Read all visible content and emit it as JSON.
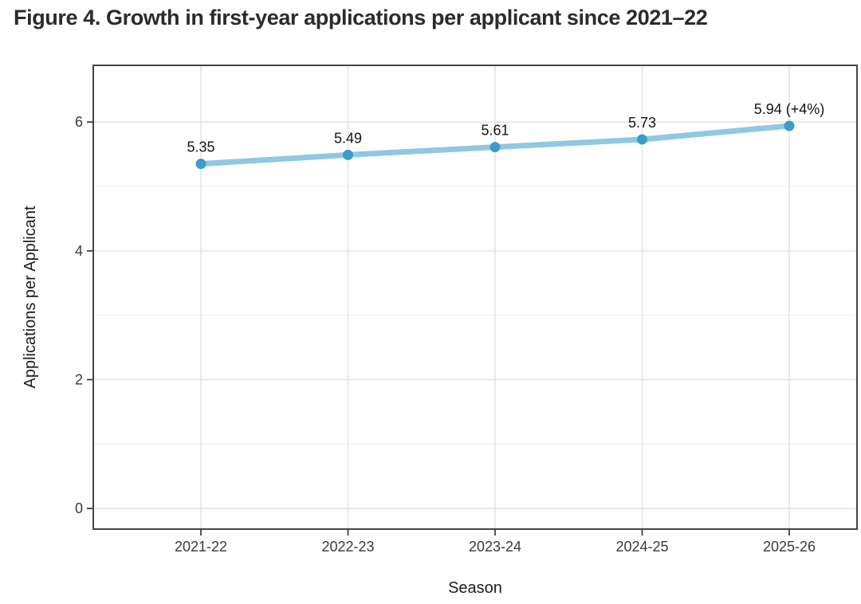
{
  "figure": {
    "title": "Figure 4. Growth in first-year applications per applicant since 2021–22"
  },
  "chart_data": {
    "type": "line",
    "title": "Figure 4. Growth in first-year applications per applicant since 2021–22",
    "categories": [
      "2021-22",
      "2022-23",
      "2023-24",
      "2024-25",
      "2025-26"
    ],
    "values": [
      5.35,
      5.49,
      5.61,
      5.73,
      5.94
    ],
    "point_labels": [
      "5.35",
      "5.49",
      "5.61",
      "5.73",
      "5.94 (+4%)"
    ],
    "xlabel": "Season",
    "ylabel": "Applications per Applicant",
    "yticks": [
      0,
      2,
      4,
      6
    ],
    "yminor": [
      1,
      3,
      5
    ],
    "ylim": [
      -0.32,
      6.88
    ],
    "grid": true,
    "legend": false,
    "colors": {
      "line": "#90C8E3",
      "point": "#3E9CC8",
      "grid_major": "#E2E2E2",
      "grid_minor": "#EDEDED",
      "panel_border": "#454545",
      "tick": "#333333"
    }
  }
}
